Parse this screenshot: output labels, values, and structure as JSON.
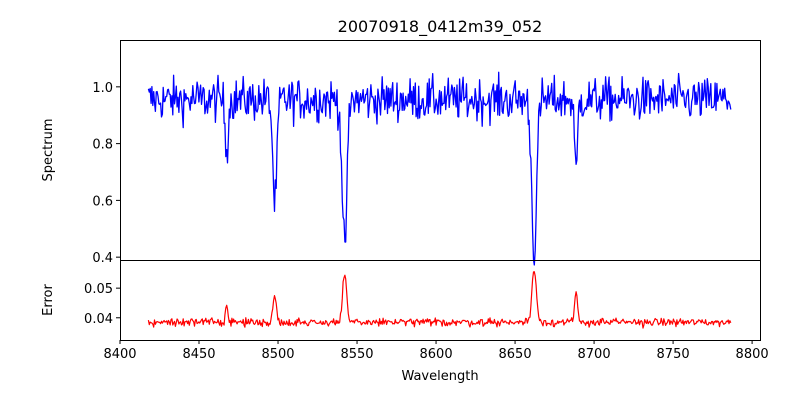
{
  "chart_data": [
    {
      "type": "line",
      "title": "20070918_0412m39_052",
      "xlabel": "",
      "ylabel": "Spectrum",
      "xlim": [
        8400,
        8805
      ],
      "ylim": [
        0.39,
        1.165
      ],
      "yticks": [
        "0.4",
        "0.6",
        "0.8",
        "1.0"
      ],
      "ytick_values": [
        0.4,
        0.6,
        0.8,
        1.0
      ],
      "grid": false,
      "series": [
        {
          "color": "#0000ff",
          "x_start": 8418,
          "x_end": 8787,
          "baseline": 0.955,
          "noise": 0.062,
          "lines": [
            {
              "center": 8467.5,
              "depth": 0.17,
              "width": 1.0
            },
            {
              "center": 8498.0,
              "depth": 0.37,
              "width": 1.3
            },
            {
              "center": 8542.1,
              "depth": 0.53,
              "width": 1.5
            },
            {
              "center": 8662.1,
              "depth": 0.53,
              "width": 1.6
            },
            {
              "center": 8688.6,
              "depth": 0.27,
              "width": 0.9
            }
          ]
        }
      ]
    },
    {
      "type": "line",
      "title": "",
      "xlabel": "Wavelength",
      "ylabel": "Error",
      "xlim": [
        8400,
        8805
      ],
      "ylim": [
        0.0325,
        0.0595
      ],
      "xticks": [
        "8400",
        "8450",
        "8500",
        "8550",
        "8600",
        "8650",
        "8700",
        "8750",
        "8800"
      ],
      "xtick_values": [
        8400,
        8450,
        8500,
        8550,
        8600,
        8650,
        8700,
        8750,
        8800
      ],
      "yticks": [
        "0.04",
        "0.05"
      ],
      "ytick_values": [
        0.04,
        0.05
      ],
      "grid": false,
      "series": [
        {
          "color": "#ff0000",
          "x_start": 8418,
          "x_end": 8787,
          "baseline": 0.0385,
          "noise": 0.0011,
          "lines": [
            {
              "center": 8467.5,
              "height": 0.006,
              "width": 0.8
            },
            {
              "center": 8498.0,
              "height": 0.0085,
              "width": 1.1
            },
            {
              "center": 8542.1,
              "height": 0.0165,
              "width": 1.2
            },
            {
              "center": 8662.1,
              "height": 0.018,
              "width": 1.4
            },
            {
              "center": 8688.6,
              "height": 0.011,
              "width": 0.8
            }
          ]
        }
      ]
    }
  ]
}
